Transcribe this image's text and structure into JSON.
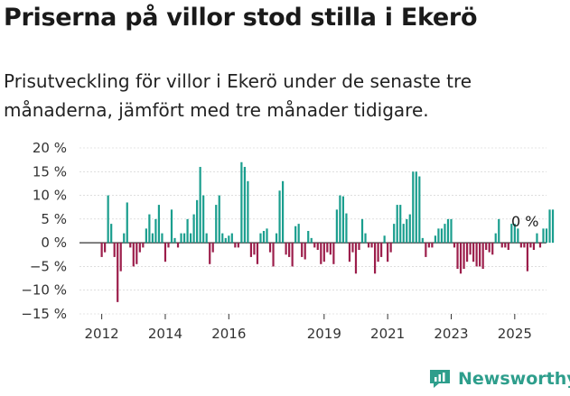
{
  "header": {
    "title": "Priserna på villor stod stilla i Ekerö",
    "subtitle": "Prisutveckling för villor i Ekerö under de senaste tre månaderna, jämfört med tre månader tidigare."
  },
  "brand": {
    "name": "Newsworthy",
    "icon": "newsworthy-logo-icon"
  },
  "colors": {
    "positive": "#1a9e8e",
    "negative": "#9c1e4b",
    "grid": "#cccccc",
    "axis": "#333333"
  },
  "chart_data": {
    "type": "bar",
    "ylim": [
      -15,
      20
    ],
    "yticks": [
      20,
      15,
      10,
      5,
      0,
      -5,
      -10,
      -15
    ],
    "ytick_labels": [
      "20 %",
      "15 %",
      "10 %",
      "5 %",
      "0 %",
      "−5 %",
      "−10 %",
      "−15 %"
    ],
    "xticks": [
      2012,
      2014,
      2016,
      2019,
      2021,
      2023,
      2025
    ],
    "xlim": [
      2011.3,
      2026.0
    ],
    "annotation": "0 %",
    "series": [
      {
        "values": [
          [
            2012.0,
            -3
          ],
          [
            2012.1,
            -2
          ],
          [
            2012.2,
            10
          ],
          [
            2012.3,
            4
          ],
          [
            2012.4,
            -3
          ],
          [
            2012.5,
            -12.5
          ],
          [
            2012.6,
            -6
          ],
          [
            2012.7,
            2
          ],
          [
            2012.8,
            8.5
          ],
          [
            2012.9,
            -1
          ],
          [
            2013.0,
            -5
          ],
          [
            2013.1,
            -4.5
          ],
          [
            2013.2,
            -2
          ],
          [
            2013.3,
            -1
          ],
          [
            2013.4,
            3
          ],
          [
            2013.5,
            6
          ],
          [
            2013.6,
            2
          ],
          [
            2013.7,
            5
          ],
          [
            2013.8,
            8
          ],
          [
            2013.9,
            2
          ],
          [
            2014.0,
            -4
          ],
          [
            2014.1,
            -1
          ],
          [
            2014.2,
            7
          ],
          [
            2014.3,
            1
          ],
          [
            2014.4,
            -1
          ],
          [
            2014.5,
            2
          ],
          [
            2014.6,
            2
          ],
          [
            2014.7,
            5
          ],
          [
            2014.8,
            2
          ],
          [
            2014.9,
            6
          ],
          [
            2015.0,
            9
          ],
          [
            2015.1,
            16
          ],
          [
            2015.2,
            10
          ],
          [
            2015.3,
            2
          ],
          [
            2015.4,
            -4.5
          ],
          [
            2015.5,
            -2
          ],
          [
            2015.6,
            8
          ],
          [
            2015.7,
            10
          ],
          [
            2015.8,
            2
          ],
          [
            2015.9,
            1
          ],
          [
            2016.0,
            1.5
          ],
          [
            2016.1,
            2
          ],
          [
            2016.2,
            -1
          ],
          [
            2016.3,
            -1
          ],
          [
            2016.4,
            17
          ],
          [
            2016.5,
            16
          ],
          [
            2016.6,
            13
          ],
          [
            2016.7,
            -3
          ],
          [
            2016.8,
            -2.5
          ],
          [
            2016.9,
            -4.5
          ],
          [
            2017.0,
            2
          ],
          [
            2017.1,
            2.5
          ],
          [
            2017.2,
            3
          ],
          [
            2017.3,
            -2
          ],
          [
            2017.4,
            -5
          ],
          [
            2017.5,
            2
          ],
          [
            2017.6,
            11
          ],
          [
            2017.7,
            13
          ],
          [
            2017.8,
            -2.5
          ],
          [
            2017.9,
            -3
          ],
          [
            2018.0,
            -5
          ],
          [
            2018.1,
            3.5
          ],
          [
            2018.2,
            4
          ],
          [
            2018.3,
            -3
          ],
          [
            2018.4,
            -3.5
          ],
          [
            2018.5,
            2.5
          ],
          [
            2018.6,
            1
          ],
          [
            2018.7,
            -1
          ],
          [
            2018.8,
            -1.5
          ],
          [
            2018.9,
            -4.5
          ],
          [
            2019.0,
            -4
          ],
          [
            2019.1,
            -2
          ],
          [
            2019.2,
            -2.5
          ],
          [
            2019.3,
            -4.5
          ],
          [
            2019.4,
            7
          ],
          [
            2019.5,
            10
          ],
          [
            2019.6,
            9.8
          ],
          [
            2019.7,
            6.2
          ],
          [
            2019.8,
            -4
          ],
          [
            2019.9,
            -2
          ],
          [
            2020.0,
            -6.5
          ],
          [
            2020.1,
            -1.5
          ],
          [
            2020.2,
            5
          ],
          [
            2020.3,
            2
          ],
          [
            2020.4,
            -1
          ],
          [
            2020.5,
            -1
          ],
          [
            2020.6,
            -6.5
          ],
          [
            2020.7,
            -4
          ],
          [
            2020.8,
            -3
          ],
          [
            2020.9,
            1.5
          ],
          [
            2021.0,
            -4
          ],
          [
            2021.1,
            -2
          ],
          [
            2021.2,
            4
          ],
          [
            2021.3,
            8
          ],
          [
            2021.4,
            8
          ],
          [
            2021.5,
            4
          ],
          [
            2021.6,
            5
          ],
          [
            2021.7,
            6
          ],
          [
            2021.8,
            15
          ],
          [
            2021.9,
            15
          ],
          [
            2022.0,
            14
          ],
          [
            2022.1,
            1
          ],
          [
            2022.2,
            -3
          ],
          [
            2022.3,
            -1
          ],
          [
            2022.4,
            -1
          ],
          [
            2022.5,
            1.5
          ],
          [
            2022.6,
            3
          ],
          [
            2022.7,
            3
          ],
          [
            2022.8,
            4
          ],
          [
            2022.9,
            5
          ],
          [
            2023.0,
            5
          ],
          [
            2023.1,
            -1
          ],
          [
            2023.2,
            -5.5
          ],
          [
            2023.3,
            -6.5
          ],
          [
            2023.4,
            -5.5
          ],
          [
            2023.5,
            -4
          ],
          [
            2023.6,
            -2.5
          ],
          [
            2023.7,
            -4
          ],
          [
            2023.8,
            -5
          ],
          [
            2023.9,
            -5
          ],
          [
            2024.0,
            -5.5
          ],
          [
            2024.1,
            -1.5
          ],
          [
            2024.2,
            -2
          ],
          [
            2024.3,
            -2.5
          ],
          [
            2024.4,
            2
          ],
          [
            2024.5,
            5
          ],
          [
            2024.6,
            -1
          ],
          [
            2024.7,
            -1
          ],
          [
            2024.8,
            -1.5
          ],
          [
            2024.9,
            4
          ],
          [
            2025.0,
            4
          ],
          [
            2025.1,
            3
          ],
          [
            2025.2,
            -1
          ],
          [
            2025.3,
            -1
          ],
          [
            2025.4,
            -6
          ],
          [
            2025.5,
            -1
          ],
          [
            2025.6,
            -1.5
          ],
          [
            2025.7,
            2
          ],
          [
            2025.8,
            -1
          ],
          [
            2025.9,
            3
          ],
          [
            2026.0,
            3
          ],
          [
            2026.1,
            7
          ],
          [
            2026.2,
            7
          ]
        ]
      }
    ]
  }
}
